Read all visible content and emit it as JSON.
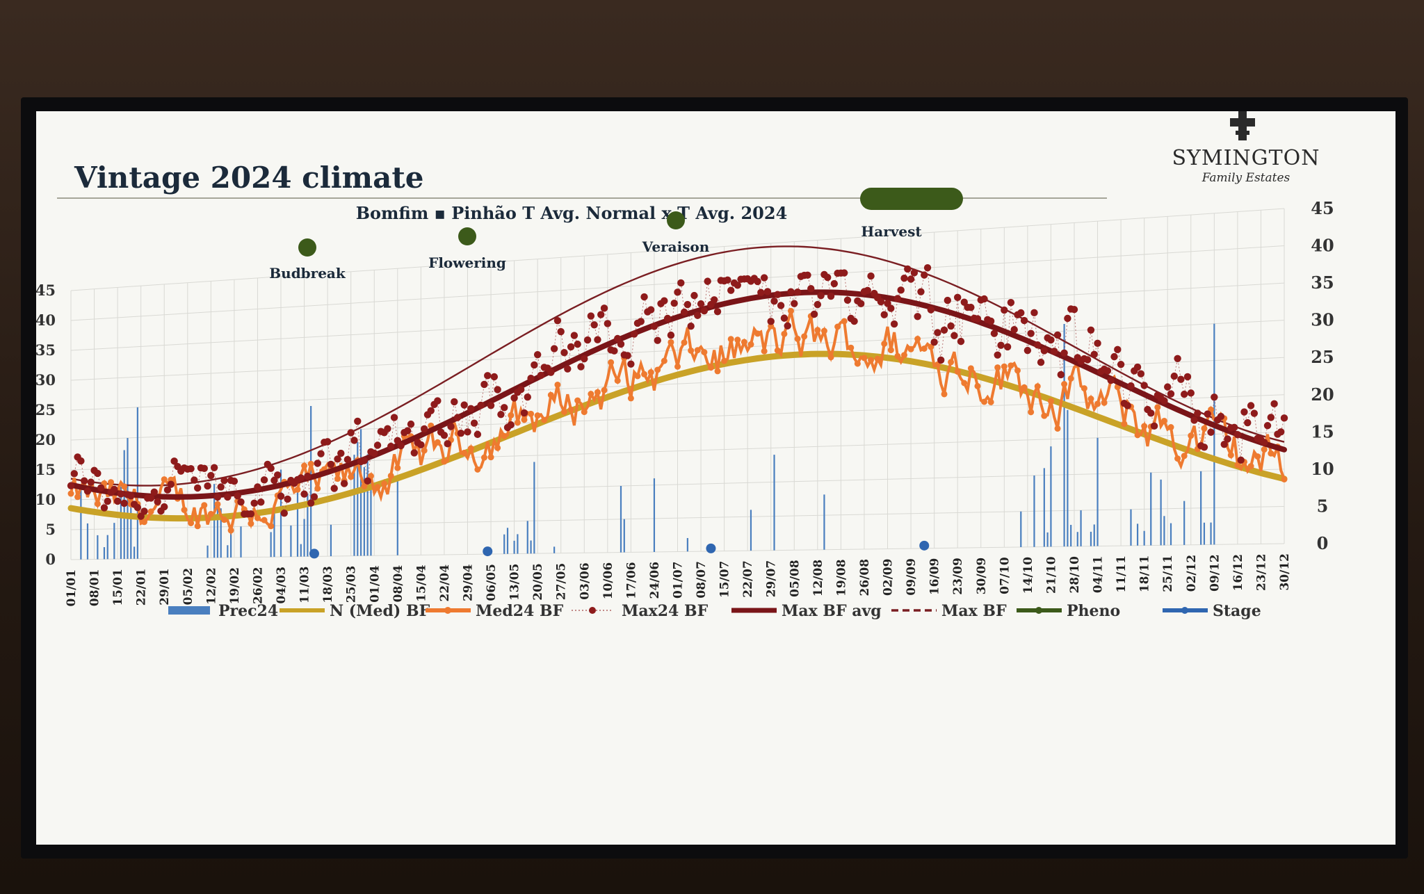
{
  "slide": {
    "title": "Vintage 2024 climate",
    "brand_name": "SYMINGTON",
    "brand_sub": "Family Estates"
  },
  "chart_data": {
    "type": "line",
    "title": "Bomfim ▪ Pinhão T Avg. Normal x T Avg. 2024",
    "left_axis": {
      "ylim": [
        0,
        45
      ],
      "ticks": [
        0,
        5,
        10,
        15,
        20,
        25,
        30,
        35,
        40,
        45
      ]
    },
    "right_axis": {
      "ylim": [
        0,
        45
      ],
      "ticks": [
        0,
        5,
        10,
        15,
        20,
        25,
        30,
        35,
        40,
        45
      ]
    },
    "x_labels": [
      "01/01",
      "08/01",
      "15/01",
      "22/01",
      "29/01",
      "05/02",
      "12/02",
      "19/02",
      "26/02",
      "04/03",
      "11/03",
      "18/03",
      "25/03",
      "01/04",
      "08/04",
      "15/04",
      "22/04",
      "29/04",
      "06/05",
      "13/05",
      "20/05",
      "27/05",
      "03/06",
      "10/06",
      "17/06",
      "24/06",
      "01/07",
      "08/07",
      "15/07",
      "22/07",
      "29/07",
      "05/08",
      "12/08",
      "19/08",
      "26/08",
      "02/09",
      "09/09",
      "16/09",
      "23/09",
      "30/09",
      "07/10",
      "14/10",
      "21/10",
      "28/10",
      "04/11",
      "11/11",
      "18/11",
      "25/11",
      "02/12",
      "09/12",
      "16/12",
      "23/12",
      "30/12"
    ],
    "grid": true,
    "legend_position": "bottom",
    "colors": {
      "prec": "#4a7fbf",
      "normal": "#c9a227",
      "med24": "#ee7a30",
      "max24": "#8e1b1b",
      "max_avg": "#7a1518",
      "max_normal": "#7a1e22",
      "pheno": "#3c5a1a",
      "stage": "#2f66b0"
    },
    "phenology": [
      {
        "label": "Budbreak",
        "date": "23/03"
      },
      {
        "label": "Flowering",
        "date": "24/04"
      },
      {
        "label": "Veraison",
        "date": "15/07"
      },
      {
        "label": "Harvest",
        "date": "02/09 - 16/09"
      }
    ],
    "stage_markers": [
      "14/03",
      "02/05",
      "11/07",
      "05/09"
    ],
    "series": [
      {
        "name": "Prec24",
        "type": "bar",
        "values_by_day": {
          "3": 12,
          "5": 6,
          "8": 4,
          "10": 2,
          "11": 4,
          "13": 6,
          "15": 12,
          "16": 18,
          "17": 20,
          "18": 10,
          "19": 2,
          "20": 25,
          "41": 2,
          "43": 12,
          "44": 10,
          "45": 8,
          "47": 2,
          "48": 4,
          "51": 5,
          "60": 4,
          "61": 8,
          "63": 14,
          "66": 5,
          "68": 11,
          "69": 2,
          "70": 6,
          "71": 10,
          "72": 24,
          "78": 5,
          "85": 16,
          "86": 18,
          "87": 20,
          "88": 14,
          "89": 16,
          "90": 12,
          "98": 12,
          "130": 3,
          "131": 4,
          "133": 2,
          "134": 3,
          "137": 5,
          "138": 2,
          "139": 14,
          "145": 1,
          "165": 10,
          "166": 5,
          "175": 11,
          "185": 2,
          "192": 1,
          "204": 6,
          "211": 14,
          "226": 8,
          "285": 5,
          "289": 10,
          "292": 11,
          "293": 2,
          "294": 14,
          "298": 31,
          "299": 19,
          "300": 3,
          "302": 2,
          "303": 5,
          "306": 2,
          "307": 3,
          "308": 15,
          "318": 5,
          "320": 3,
          "322": 2,
          "324": 10,
          "327": 9,
          "328": 4,
          "330": 3,
          "334": 6,
          "339": 10,
          "340": 3,
          "342": 3,
          "343": 30
        }
      },
      {
        "name": "N (Med) BF",
        "type": "line",
        "model": "sinusoid",
        "min": 6.5,
        "max": 28.5,
        "peak_day": 219
      },
      {
        "name": "Med24 BF",
        "type": "line",
        "markers": true,
        "daily": "approx. sinusoid with daily noise (approx. 4–36)"
      },
      {
        "name": "Max24 BF",
        "type": "scatter",
        "daily": "approx. Max BF avg with daily noise (approx. 7–40)"
      },
      {
        "name": "Max BF avg",
        "type": "line",
        "model": "sinusoid",
        "min": 10,
        "max": 37.5,
        "peak_day": 218
      },
      {
        "name": "Max BF",
        "type": "line",
        "dashed": true,
        "model": "sinusoid",
        "min": 12,
        "max": 44.5,
        "peak_day": 208
      },
      {
        "name": "Pheno",
        "type": "marker"
      },
      {
        "name": "Stage",
        "type": "marker"
      }
    ]
  }
}
